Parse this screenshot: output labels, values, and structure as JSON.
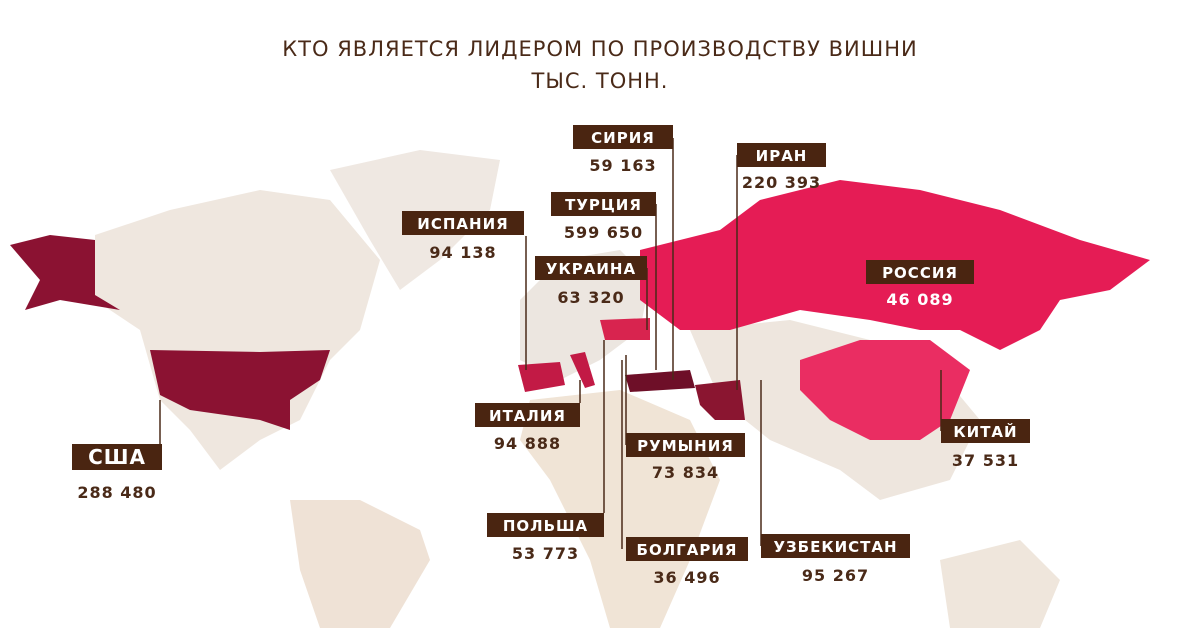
{
  "header": {
    "title": "КТО ЯВЛЯЕТСЯ ЛИДЕРОМ ПО ПРОИЗВОДСТВУ ВИШНИ",
    "subtitle": "ТЫС. ТОНН."
  },
  "countries": [
    {
      "name": "США",
      "value": "288 480"
    },
    {
      "name": "ИСПАНИЯ",
      "value": "94 138"
    },
    {
      "name": "ИТАЛИЯ",
      "value": "94 888"
    },
    {
      "name": "ПОЛЬША",
      "value": "53 773"
    },
    {
      "name": "СИРИЯ",
      "value": "59 163"
    },
    {
      "name": "ТУРЦИЯ",
      "value": "599 650"
    },
    {
      "name": "УКРАИНА",
      "value": "63 320"
    },
    {
      "name": "ИРАН",
      "value": "220 393"
    },
    {
      "name": "РОССИЯ",
      "value": "46 089"
    },
    {
      "name": "РУМЫНИЯ",
      "value": "73 834"
    },
    {
      "name": "БОЛГАРИЯ",
      "value": "36 496"
    },
    {
      "name": "УЗБЕКИСТАН",
      "value": "95 267"
    },
    {
      "name": "КИТАЙ",
      "value": "37 531"
    }
  ]
}
